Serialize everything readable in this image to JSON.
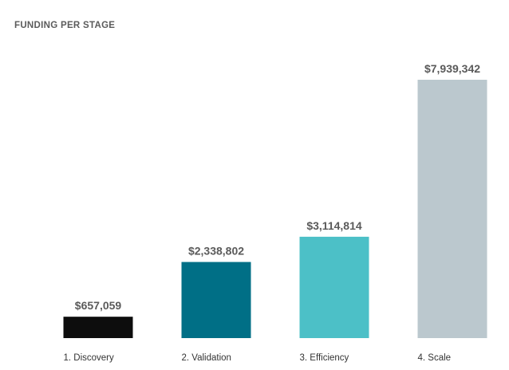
{
  "chart_data": {
    "type": "bar",
    "title": "FUNDING PER STAGE",
    "categories": [
      "1. Discovery",
      "2. Validation",
      "3. Efficiency",
      "4. Scale"
    ],
    "values": [
      657059,
      2338802,
      3114814,
      7939342
    ],
    "value_labels": [
      "$657,059",
      "$2,338,802",
      "$3,114,814",
      "$7,939,342"
    ],
    "colors": [
      "#0d0d0d",
      "#006f86",
      "#4cc0c7",
      "#bbc8ce"
    ],
    "ylim": [
      0,
      7939342
    ],
    "xlabel": "",
    "ylabel": "",
    "grid": false,
    "legend": "none"
  }
}
